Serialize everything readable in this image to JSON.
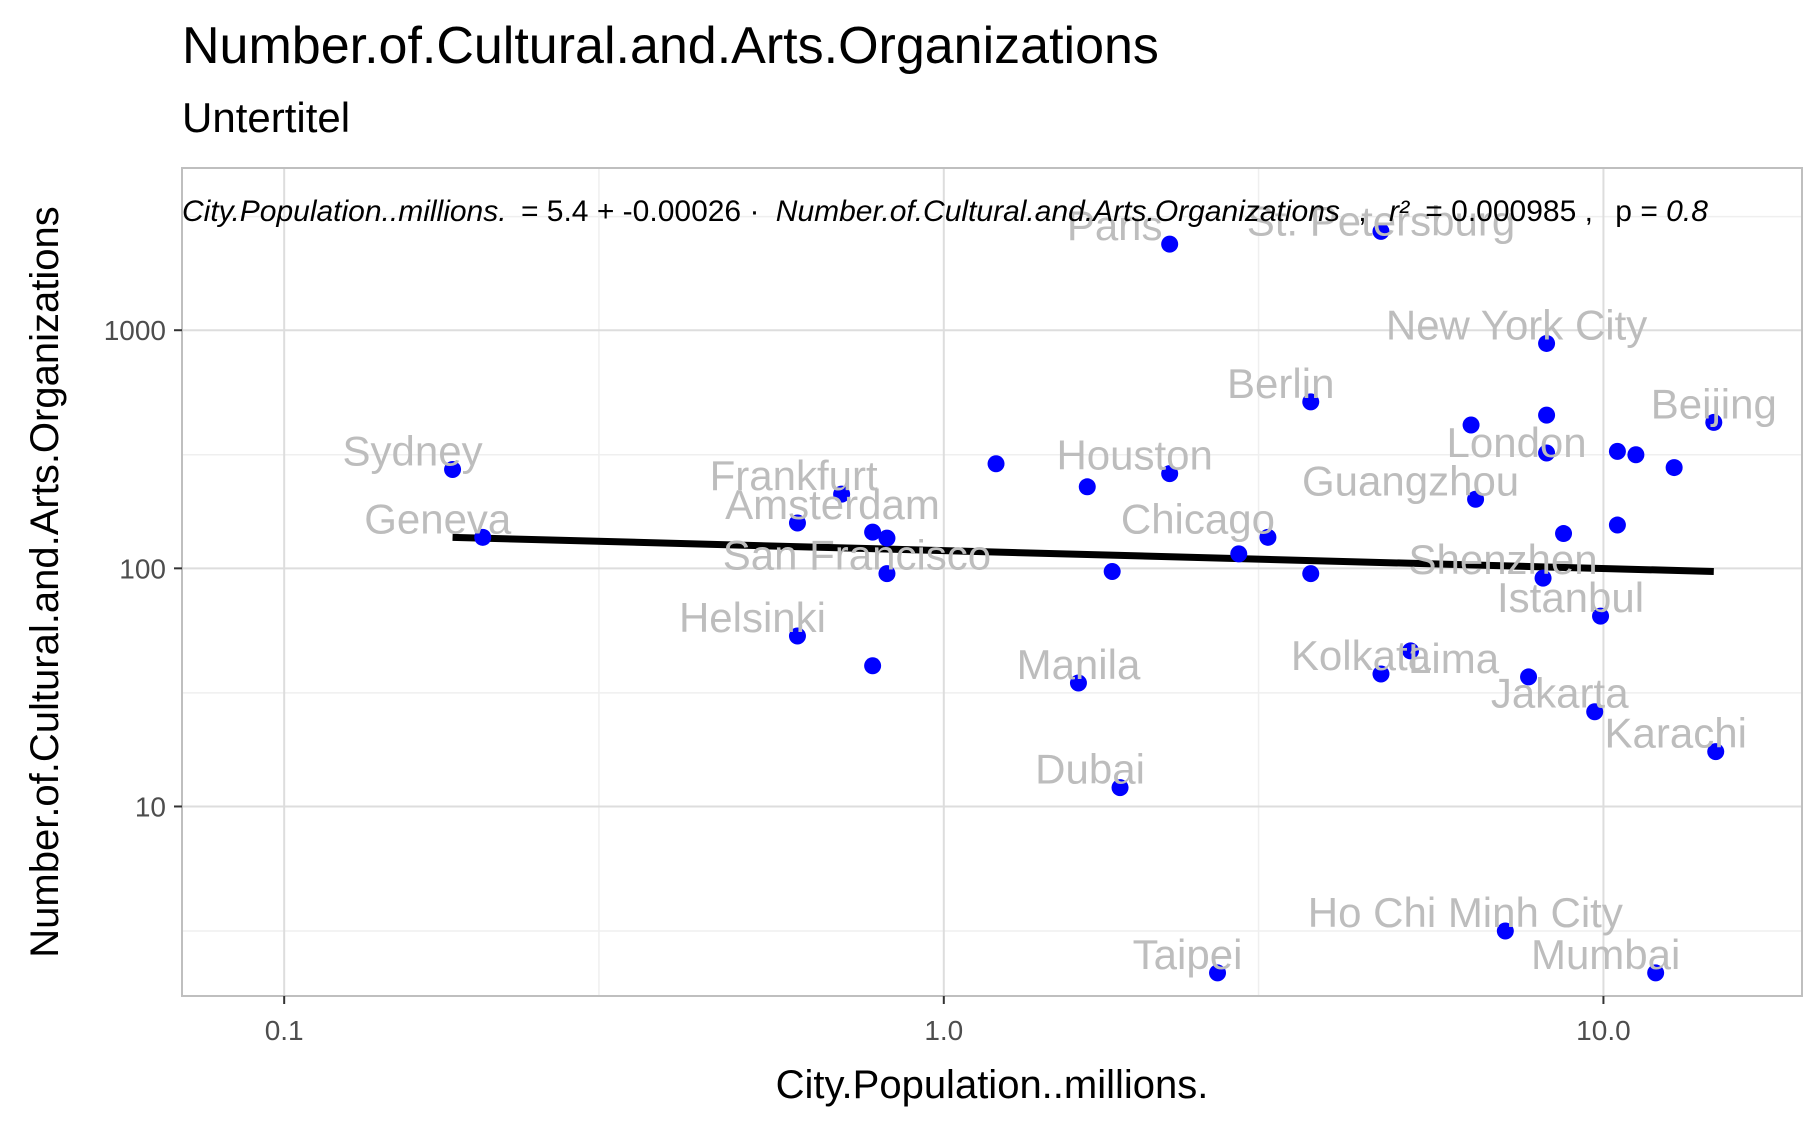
{
  "chart_data": {
    "type": "scatter",
    "title": "Number.of.Cultural.and.Arts.Organizations",
    "subtitle": "Untertitel",
    "xlabel": "City.Population..millions.",
    "ylabel": "Number.of.Cultural.and.Arts.Organizations",
    "x_scale": "log10",
    "y_scale": "log10",
    "xlim": [
      0.07,
      20
    ],
    "ylim": [
      1.6,
      4800
    ],
    "x_ticks": [
      {
        "value": 0.1,
        "label": "0.1"
      },
      {
        "value": 1,
        "label": "1.0"
      },
      {
        "value": 10,
        "label": "10.0"
      }
    ],
    "y_ticks": [
      {
        "value": 10,
        "label": "10"
      },
      {
        "value": 100,
        "label": "100"
      },
      {
        "value": 1000,
        "label": "1000"
      }
    ],
    "grid": true,
    "point_color": "#0000ff",
    "label_color": "#bdbdbd",
    "trend_color": "#000000",
    "equation": {
      "lhs": "City.Population..millions.",
      "rhs": "= 5.4 + -0.00026 · ",
      "variable": "Number.of.Cultural.and.Arts.Organizations",
      "r2_label": "r²",
      "r2_value": "= 0.000985",
      "p_label": "p = ",
      "p_value": "0.8"
    },
    "trend_line": {
      "x_start": 0.18,
      "y_start": 135,
      "x_end": 14.7,
      "y_end": 97
    },
    "points": [
      {
        "x": 2.2,
        "y": 2300,
        "label": "Paris",
        "label_dx": -55,
        "label_dy": -4
      },
      {
        "x": 4.6,
        "y": 2600,
        "label": "St. Petersburg",
        "label_dx": 0,
        "label_dy": 4
      },
      {
        "x": 8.2,
        "y": 880,
        "label": "New York City",
        "label_dx": -30,
        "label_dy": -4
      },
      {
        "x": 3.6,
        "y": 500,
        "label": "Berlin",
        "label_dx": -30,
        "label_dy": -4
      },
      {
        "x": 8.2,
        "y": 440,
        "label": "",
        "label_dx": 0,
        "label_dy": 0
      },
      {
        "x": 6.3,
        "y": 400,
        "label": "",
        "label_dx": 0,
        "label_dy": 0
      },
      {
        "x": 14.7,
        "y": 410,
        "label": "Beijing",
        "label_dx": 0,
        "label_dy": -4
      },
      {
        "x": 8.2,
        "y": 305,
        "label": "London",
        "label_dx": -30,
        "label_dy": 4
      },
      {
        "x": 10.5,
        "y": 310,
        "label": "",
        "label_dx": 0,
        "label_dy": 0
      },
      {
        "x": 11.2,
        "y": 300,
        "label": "",
        "label_dx": 0,
        "label_dy": 0
      },
      {
        "x": 12.8,
        "y": 265,
        "label": "",
        "label_dx": 0,
        "label_dy": 0
      },
      {
        "x": 0.18,
        "y": 260,
        "label": "Sydney",
        "label_dx": -40,
        "label_dy": -4
      },
      {
        "x": 1.2,
        "y": 275,
        "label": "",
        "label_dx": 0,
        "label_dy": 0
      },
      {
        "x": 2.2,
        "y": 250,
        "label": "Houston",
        "label_dx": -35,
        "label_dy": -4
      },
      {
        "x": 1.65,
        "y": 220,
        "label": "",
        "label_dx": 0,
        "label_dy": 0
      },
      {
        "x": 0.7,
        "y": 205,
        "label": "Frankfurt",
        "label_dx": -48,
        "label_dy": -4
      },
      {
        "x": 6.4,
        "y": 195,
        "label": "Guangzhou",
        "label_dx": -65,
        "label_dy": -4
      },
      {
        "x": 0.6,
        "y": 155,
        "label": "Amsterdam",
        "label_dx": 35,
        "label_dy": -4
      },
      {
        "x": 10.5,
        "y": 152,
        "label": "",
        "label_dx": 0,
        "label_dy": 0
      },
      {
        "x": 0.78,
        "y": 142,
        "label": "",
        "label_dx": 0,
        "label_dy": 0
      },
      {
        "x": 0.82,
        "y": 134,
        "label": "",
        "label_dx": 0,
        "label_dy": 0
      },
      {
        "x": 8.7,
        "y": 140,
        "label": "",
        "label_dx": 0,
        "label_dy": 0
      },
      {
        "x": 0.2,
        "y": 135,
        "label": "Geneva",
        "label_dx": -45,
        "label_dy": -4
      },
      {
        "x": 3.1,
        "y": 135,
        "label": "Chicago",
        "label_dx": -70,
        "label_dy": -4
      },
      {
        "x": 2.8,
        "y": 115,
        "label": "",
        "label_dx": 0,
        "label_dy": 0
      },
      {
        "x": 1.8,
        "y": 97,
        "label": "",
        "label_dx": 0,
        "label_dy": 0
      },
      {
        "x": 3.6,
        "y": 95,
        "label": "",
        "label_dx": 0,
        "label_dy": 0
      },
      {
        "x": 0.82,
        "y": 95,
        "label": "San Francisco",
        "label_dx": -30,
        "label_dy": -4
      },
      {
        "x": 8.1,
        "y": 91,
        "label": "Shenzhen",
        "label_dx": -40,
        "label_dy": -4
      },
      {
        "x": 9.9,
        "y": 63,
        "label": "Istanbul",
        "label_dx": -30,
        "label_dy": -4
      },
      {
        "x": 0.6,
        "y": 52,
        "label": "Helsinki",
        "label_dx": -45,
        "label_dy": -4
      },
      {
        "x": 5.1,
        "y": 45,
        "label": "",
        "label_dx": 0,
        "label_dy": 0
      },
      {
        "x": 0.78,
        "y": 39,
        "label": "",
        "label_dx": 0,
        "label_dy": 0
      },
      {
        "x": 4.6,
        "y": 36,
        "label": "Kolkata",
        "label_dx": -20,
        "label_dy": -4
      },
      {
        "x": 7.7,
        "y": 35,
        "label": "Lima",
        "label_dx": -75,
        "label_dy": -4
      },
      {
        "x": 1.6,
        "y": 33,
        "label": "Manila",
        "label_dx": 0,
        "label_dy": -4
      },
      {
        "x": 9.7,
        "y": 25,
        "label": "Jakarta",
        "label_dx": -35,
        "label_dy": -4
      },
      {
        "x": 14.8,
        "y": 17,
        "label": "Karachi",
        "label_dx": -40,
        "label_dy": -4
      },
      {
        "x": 1.85,
        "y": 12,
        "label": "Dubai",
        "label_dx": -30,
        "label_dy": -4
      },
      {
        "x": 7.1,
        "y": 3,
        "label": "Ho Chi Minh City",
        "label_dx": -40,
        "label_dy": -4
      },
      {
        "x": 2.6,
        "y": 2,
        "label": "Taipei",
        "label_dx": -30,
        "label_dy": -4
      },
      {
        "x": 12,
        "y": 2,
        "label": "Mumbai",
        "label_dx": -50,
        "label_dy": -4
      }
    ]
  }
}
